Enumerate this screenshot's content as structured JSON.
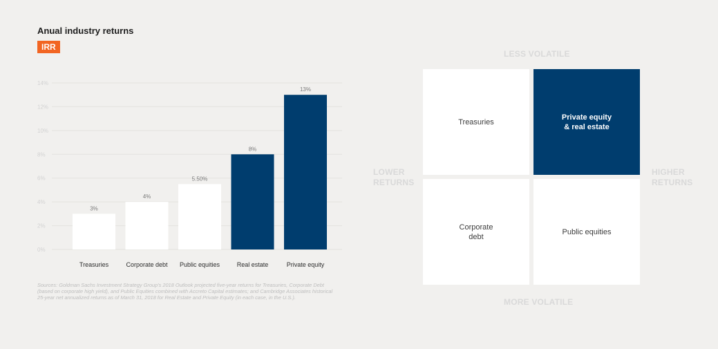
{
  "header": {
    "title": "Anual industry returns",
    "badge": "IRR"
  },
  "colors": {
    "accent": "#f26522",
    "bar_light": "#ffffff",
    "bar_dark": "#003d6e",
    "background": "#f1f0ee",
    "grid": "#e3e2df"
  },
  "chart_data": {
    "type": "bar",
    "categories": [
      "Treasuries",
      "Corporate debt",
      "Public equities",
      "Real estate",
      "Private equity"
    ],
    "values": [
      3,
      4,
      5.5,
      8,
      13
    ],
    "value_labels": [
      "3%",
      "4%",
      "5.50%",
      "8%",
      "13%"
    ],
    "highlighted": [
      false,
      false,
      false,
      true,
      true
    ],
    "yticks": [
      0,
      2,
      4,
      6,
      8,
      10,
      12,
      14
    ],
    "ytick_labels": [
      "0%",
      "2%",
      "4%",
      "6%",
      "8%",
      "10%",
      "12%",
      "14%"
    ],
    "ylim": [
      0,
      14
    ],
    "grid": true
  },
  "sources": "Sources: Goldman Sachs Investment Strategy Group's 2018 Outlook projected five-year returns for Treasuries, Corporate Debt (based on corporate high yield), and Public Equities combined with Accreto Capital estimates; and Cambridge Associates historical 25-year net annualized returns as of March 31, 2018 for Real Estate and Private Equity (in each case, in the U.S.).",
  "matrix": {
    "top_label": "LESS VOLATILE",
    "bottom_label": "MORE VOLATILE",
    "left_label": "LOWER\nRETURNS",
    "right_label": "HIGHER\nRETURNS",
    "top_left": "Treasuries",
    "top_right": "Private equity\n& real estate",
    "bottom_left": "Corporate\ndebt",
    "bottom_right": "Public equities"
  }
}
